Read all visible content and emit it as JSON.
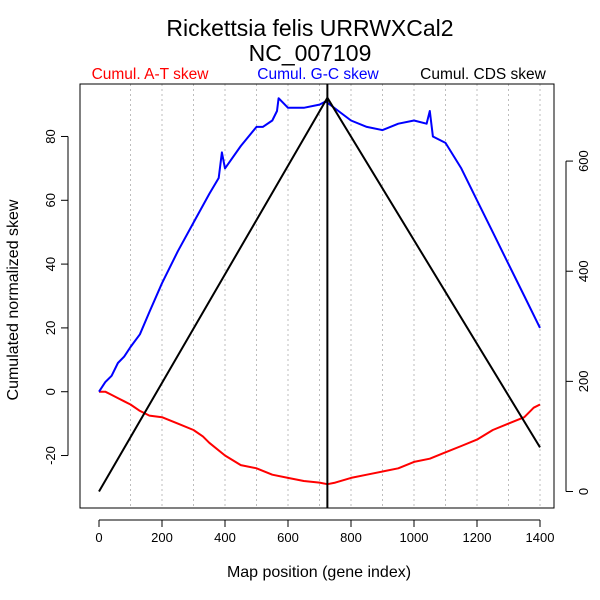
{
  "chart_data": {
    "type": "line",
    "title": "Rickettsia felis URRWXCal2",
    "subtitle": "NC_007109",
    "xlabel": "Map position (gene index)",
    "ylabel": "Cumulated normalized skew",
    "xlim": [
      0,
      1400
    ],
    "ylim_left": [
      -33,
      93
    ],
    "ylim_right": [
      -10,
      720
    ],
    "x_ticks": [
      "0",
      "200",
      "400",
      "600",
      "800",
      "1000",
      "1200",
      "1400"
    ],
    "y_ticks_left": [
      "-20",
      "0",
      "20",
      "40",
      "60",
      "80"
    ],
    "y_ticks_right": [
      "0",
      "200",
      "400",
      "600"
    ],
    "vertical_gridlines": [
      100,
      200,
      300,
      400,
      500,
      600,
      700,
      800,
      900,
      1000,
      1100,
      1200,
      1300,
      1400
    ],
    "marker_x": 725,
    "legend": [
      {
        "label": "Cumul. A-T skew",
        "color": "#ff0000"
      },
      {
        "label": "Cumul. G-C skew",
        "color": "#0000ff"
      },
      {
        "label": "Cumul. CDS skew",
        "color": "#000000"
      }
    ],
    "series": [
      {
        "name": "Cumul. A-T skew",
        "color": "#ff0000",
        "axis": "left",
        "x": [
          0,
          20,
          40,
          60,
          80,
          100,
          130,
          160,
          200,
          250,
          300,
          330,
          350,
          400,
          450,
          500,
          550,
          600,
          650,
          700,
          725,
          750,
          800,
          850,
          900,
          950,
          1000,
          1050,
          1100,
          1150,
          1200,
          1250,
          1300,
          1350,
          1380,
          1400
        ],
        "y": [
          0,
          0,
          -1,
          -2,
          -3,
          -4,
          -6,
          -7.5,
          -8,
          -10,
          -12,
          -14,
          -16,
          -20,
          -23,
          -24,
          -26,
          -27,
          -28,
          -28.5,
          -29,
          -28.5,
          -27,
          -26,
          -25,
          -24,
          -22,
          -21,
          -19,
          -17,
          -15,
          -12,
          -10,
          -8,
          -5,
          -4
        ]
      },
      {
        "name": "Cumul. G-C skew",
        "color": "#0000ff",
        "axis": "left",
        "x": [
          0,
          20,
          40,
          60,
          80,
          100,
          130,
          160,
          200,
          250,
          300,
          350,
          380,
          390,
          400,
          450,
          500,
          520,
          550,
          565,
          570,
          600,
          650,
          700,
          720,
          760,
          800,
          850,
          900,
          950,
          1000,
          1040,
          1050,
          1060,
          1100,
          1150,
          1200,
          1250,
          1300,
          1350,
          1400
        ],
        "y": [
          0,
          3,
          5,
          9,
          11,
          14,
          18,
          25,
          34,
          44,
          53,
          62,
          67,
          75,
          70,
          77,
          83,
          83,
          85,
          88,
          92,
          89,
          89,
          90,
          91,
          88,
          85,
          83,
          82,
          84,
          85,
          84,
          88,
          80,
          78,
          70,
          60,
          50,
          40,
          30,
          20
        ]
      },
      {
        "name": "Cumul. CDS skew",
        "color": "#000000",
        "axis": "right",
        "x": [
          0,
          725,
          1400
        ],
        "y": [
          0,
          715,
          80
        ]
      }
    ]
  }
}
